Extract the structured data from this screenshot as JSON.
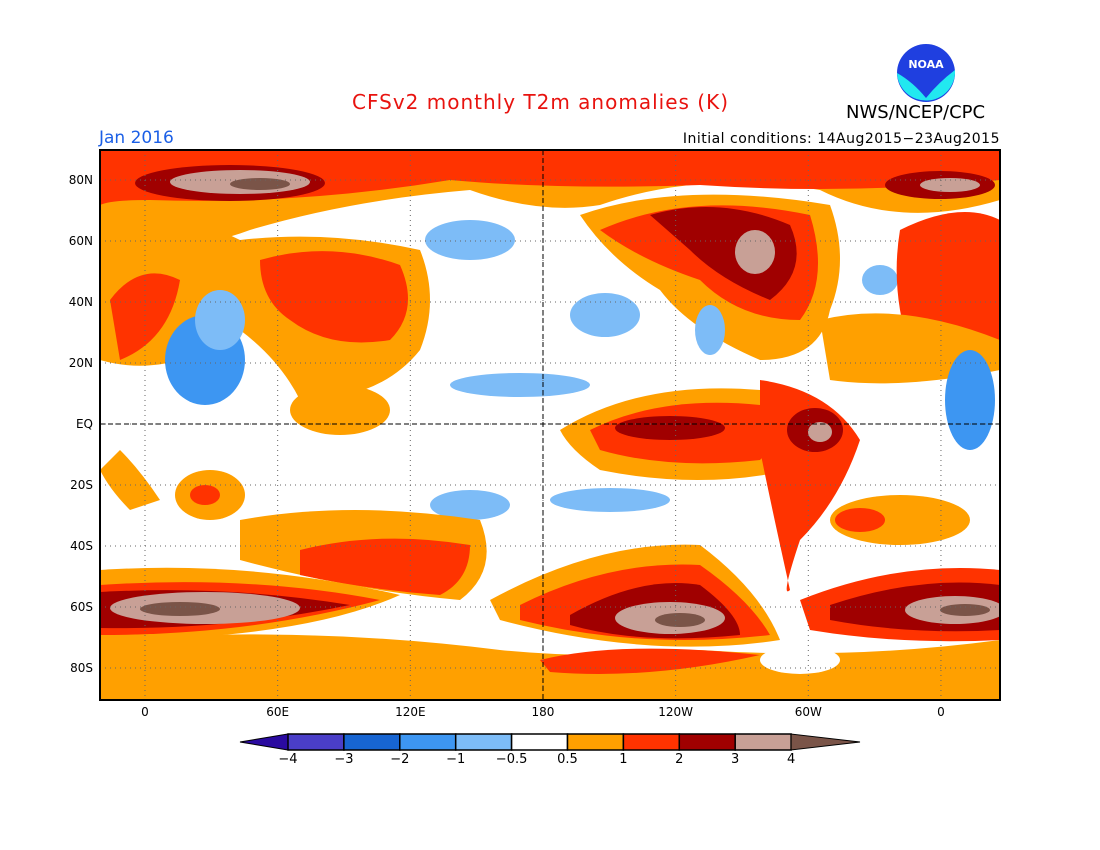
{
  "header": {
    "title": "CFSv2 monthly T2m anomalies (K)",
    "valid_month": "Jan 2016",
    "initial_conditions": "Initial conditions: 14Aug2015−23Aug2015",
    "organization": "NWS/NCEP/CPC",
    "logo_text": "NOAA"
  },
  "axes": {
    "lon_ticks": [
      {
        "lon": 0,
        "label": "0"
      },
      {
        "lon": 60,
        "label": "60E"
      },
      {
        "lon": 120,
        "label": "120E"
      },
      {
        "lon": 180,
        "label": "180"
      },
      {
        "lon": 240,
        "label": "120W"
      },
      {
        "lon": 300,
        "label": "60W"
      },
      {
        "lon": 360,
        "label": "0"
      }
    ],
    "lat_ticks": [
      {
        "lat": 80,
        "label": "80N"
      },
      {
        "lat": 60,
        "label": "60N"
      },
      {
        "lat": 40,
        "label": "40N"
      },
      {
        "lat": 20,
        "label": "20N"
      },
      {
        "lat": 0,
        "label": "EQ"
      },
      {
        "lat": -20,
        "label": "20S"
      },
      {
        "lat": -40,
        "label": "40S"
      },
      {
        "lat": -60,
        "label": "60S"
      },
      {
        "lat": -80,
        "label": "80S"
      }
    ]
  },
  "colorbar": {
    "labels": [
      "−4",
      "−3",
      "−2",
      "−1",
      "−0.5",
      "0.5",
      "1",
      "2",
      "3",
      "4"
    ],
    "colors": [
      "#2a0aa0",
      "#4a3ec8",
      "#1765d2",
      "#3d96f2",
      "#7dbcf7",
      "#ffffff",
      "#ffa000",
      "#ff3300",
      "#a00000",
      "#c8a096",
      "#7a5448"
    ]
  }
}
